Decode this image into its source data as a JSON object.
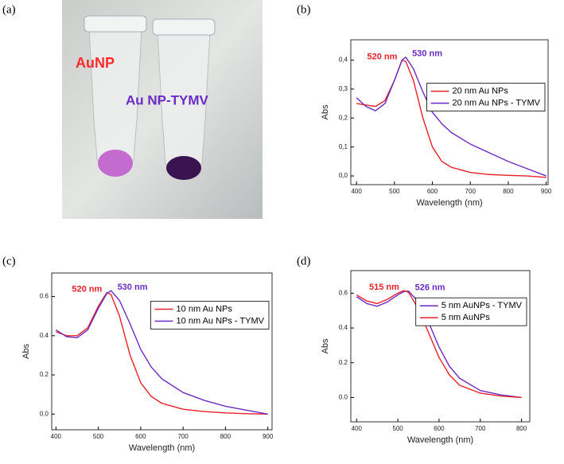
{
  "photo": {
    "panel_label": "(a)",
    "labels": [
      "AuNP",
      "Au NP-TYMV"
    ]
  },
  "chart_data": [
    {
      "type": "line",
      "panel_label": "(b)",
      "x_label": "Wavelength (nm)",
      "y_label": "Abs",
      "x": [
        400,
        425,
        450,
        475,
        500,
        520,
        530,
        550,
        575,
        600,
        625,
        650,
        700,
        750,
        800,
        850,
        900
      ],
      "series": [
        {
          "name": "20 nm Au NPs",
          "color": "#e8202a",
          "peak_label": "520 nm",
          "values": [
            0.25,
            0.245,
            0.24,
            0.26,
            0.33,
            0.4,
            0.395,
            0.33,
            0.2,
            0.1,
            0.05,
            0.03,
            0.012,
            0.005,
            0.002,
            0.0,
            -0.005
          ]
        },
        {
          "name": "20 nm Au NPs - TYMV",
          "color": "#6a2bc4",
          "peak_label": "530 nm",
          "values": [
            0.27,
            0.24,
            0.225,
            0.25,
            0.33,
            0.4,
            0.41,
            0.37,
            0.29,
            0.22,
            0.18,
            0.15,
            0.11,
            0.08,
            0.05,
            0.025,
            0.0
          ]
        }
      ],
      "xlim": [
        385,
        905
      ],
      "xticks": [
        400,
        500,
        600,
        700,
        800,
        900
      ],
      "ylim": [
        -0.03,
        0.47
      ],
      "yticks": [
        {
          "value": 0,
          "label": "0,0"
        },
        {
          "value": 0.1,
          "label": "0,1"
        },
        {
          "value": 0.2,
          "label": "0,2"
        },
        {
          "value": 0.3,
          "label": "0,3"
        },
        {
          "value": 0.4,
          "label": "0,4"
        }
      ],
      "legend": "center right"
    },
    {
      "type": "line",
      "panel_label": "(c)",
      "x_label": "Wavelength (nm)",
      "y_label": "Abs",
      "x": [
        400,
        425,
        450,
        475,
        500,
        520,
        530,
        550,
        575,
        600,
        625,
        650,
        700,
        750,
        800,
        850,
        900
      ],
      "series": [
        {
          "name": "10 nm Au NPs",
          "color": "#e8202a",
          "peak_label": "520 nm",
          "values": [
            0.42,
            0.4,
            0.4,
            0.44,
            0.55,
            0.62,
            0.61,
            0.5,
            0.3,
            0.16,
            0.09,
            0.055,
            0.025,
            0.013,
            0.006,
            0.002,
            0.0
          ]
        },
        {
          "name": "10 nm Au NPs - TYMV",
          "color": "#6a2bc4",
          "peak_label": "530 nm",
          "values": [
            0.43,
            0.395,
            0.39,
            0.43,
            0.54,
            0.615,
            0.63,
            0.58,
            0.46,
            0.33,
            0.24,
            0.18,
            0.11,
            0.07,
            0.04,
            0.02,
            0.0
          ]
        }
      ],
      "xlim": [
        390,
        910
      ],
      "xticks": [
        400,
        500,
        600,
        700,
        800,
        900
      ],
      "ylim": [
        -0.08,
        0.72
      ],
      "yticks": [
        {
          "value": 0,
          "label": "0.0"
        },
        0.2,
        0.4,
        0.6
      ],
      "legend": "upper right"
    },
    {
      "type": "line",
      "panel_label": "(d)",
      "x_label": "Wavelength (nm)",
      "y_label": "Abs",
      "x": [
        400,
        425,
        450,
        475,
        500,
        515,
        526,
        550,
        575,
        600,
        625,
        650,
        700,
        750,
        800
      ],
      "series": [
        {
          "name": "5 nm AuNPs - TYMV",
          "color": "#6a2bc4",
          "peak_label": "526 nm",
          "values": [
            0.58,
            0.54,
            0.525,
            0.55,
            0.59,
            0.61,
            0.612,
            0.55,
            0.43,
            0.29,
            0.18,
            0.11,
            0.04,
            0.015,
            0.0
          ]
        },
        {
          "name": "5 nm AuNPs",
          "color": "#e8202a",
          "peak_label": "515 nm",
          "values": [
            0.59,
            0.555,
            0.54,
            0.565,
            0.6,
            0.615,
            0.605,
            0.51,
            0.37,
            0.23,
            0.13,
            0.07,
            0.025,
            0.008,
            0.0
          ]
        }
      ],
      "xlim": [
        386,
        820
      ],
      "xticks": [
        400,
        500,
        600,
        700,
        800
      ],
      "ylim": [
        -0.14,
        0.73
      ],
      "yticks": [
        {
          "value": 0,
          "label": "0.0"
        },
        0.2,
        0.4,
        0.6
      ],
      "legend": "upper right"
    }
  ]
}
